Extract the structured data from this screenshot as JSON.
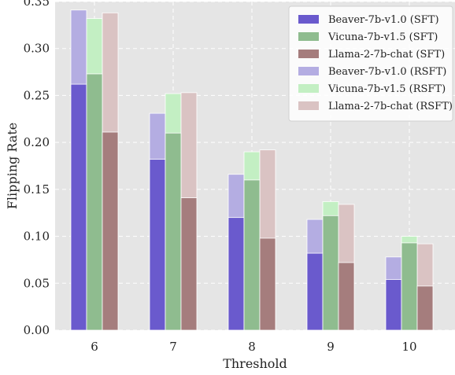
{
  "chart_data": {
    "type": "bar",
    "title": "",
    "xlabel": "Threshold",
    "ylabel": "Flipping Rate",
    "categories": [
      "6",
      "7",
      "8",
      "9",
      "10"
    ],
    "ylim": [
      0,
      0.35
    ],
    "yticks": [
      0.0,
      0.05,
      0.1,
      0.15,
      0.2,
      0.25,
      0.3,
      0.35
    ],
    "ytick_labels": [
      "0.00",
      "0.05",
      "0.10",
      "0.15",
      "0.20",
      "0.25",
      "0.30",
      "0.35"
    ],
    "grid": true,
    "legend_position": "top-right",
    "bar_layout": "SFT bars drawn in front of overlapping RSFT bars for each model",
    "series": [
      {
        "name": "Beaver-7b-v1.0 (SFT)",
        "model": "Beaver-7b-v1.0",
        "method": "SFT",
        "color": "#6a5acd",
        "values": [
          0.262,
          0.182,
          0.12,
          0.082,
          0.054
        ]
      },
      {
        "name": "Vicuna-7b-v1.5 (SFT)",
        "model": "Vicuna-7b-v1.5",
        "method": "SFT",
        "color": "#8fbc8f",
        "values": [
          0.273,
          0.21,
          0.16,
          0.122,
          0.093
        ]
      },
      {
        "name": "Llama-2-7b-chat (SFT)",
        "model": "Llama-2-7b-chat",
        "method": "SFT",
        "color": "#a57d7d",
        "values": [
          0.211,
          0.141,
          0.098,
          0.072,
          0.047
        ]
      },
      {
        "name": "Beaver-7b-v1.0 (RSFT)",
        "model": "Beaver-7b-v1.0",
        "method": "RSFT",
        "color": "#b4ade2",
        "values": [
          0.341,
          0.231,
          0.166,
          0.118,
          0.078
        ]
      },
      {
        "name": "Vicuna-7b-v1.5 (RSFT)",
        "model": "Vicuna-7b-v1.5",
        "method": "RSFT",
        "color": "#c3efc3",
        "values": [
          0.332,
          0.252,
          0.19,
          0.137,
          0.1
        ]
      },
      {
        "name": "Llama-2-7b-chat (RSFT)",
        "model": "Llama-2-7b-chat",
        "method": "RSFT",
        "color": "#dac3c3",
        "values": [
          0.338,
          0.253,
          0.192,
          0.134,
          0.092
        ]
      }
    ]
  }
}
